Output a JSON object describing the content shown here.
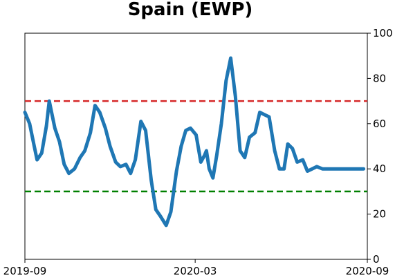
{
  "chart_data": {
    "type": "line",
    "title": "Spain (EWP)",
    "xlabel": "",
    "ylabel": "",
    "x_ticks": [
      "2019-09",
      "2020-03",
      "2020-09"
    ],
    "x_range": [
      "2019-09-01",
      "2020-09-01"
    ],
    "y_ticks": [
      0,
      20,
      40,
      60,
      80,
      100
    ],
    "ylim": [
      0,
      100
    ],
    "y_axis_side": "right",
    "grid": false,
    "colors": {
      "series": "#1f77b4",
      "upper_threshold": "#d62728",
      "lower_threshold": "#008000"
    },
    "thresholds": [
      {
        "value": 70,
        "style": "dashed",
        "color": "#d62728"
      },
      {
        "value": 30,
        "style": "dashed",
        "color": "#008000"
      }
    ],
    "series": [
      {
        "x": [
          "2019-09-01",
          "2019-09-06",
          "2019-09-11",
          "2019-09-14",
          "2019-09-19",
          "2019-09-24",
          "2019-09-27",
          "2019-10-03",
          "2019-10-08",
          "2019-10-13",
          "2019-10-18",
          "2019-10-24",
          "2019-10-30",
          "2019-11-04",
          "2019-11-10",
          "2019-11-15",
          "2019-11-20",
          "2019-11-26",
          "2019-12-01",
          "2019-12-07",
          "2019-12-12",
          "2019-12-18",
          "2019-12-23",
          "2019-12-28",
          "2020-01-03",
          "2020-01-08",
          "2020-01-14",
          "2020-01-19",
          "2020-01-24",
          "2020-01-30",
          "2020-02-04",
          "2020-02-10",
          "2020-02-15",
          "2020-02-20",
          "2020-02-25",
          "2020-03-02",
          "2020-03-07",
          "2020-03-11",
          "2020-03-13",
          "2020-03-16",
          "2020-03-20",
          "2020-03-24",
          "2020-03-29",
          "2020-04-03",
          "2020-04-08",
          "2020-04-13",
          "2020-04-18",
          "2020-04-23",
          "2020-04-28",
          "2020-05-04",
          "2020-05-09",
          "2020-05-14",
          "2020-05-19",
          "2020-05-25",
          "2020-05-30",
          "2020-06-04",
          "2020-06-08",
          "2020-06-13",
          "2020-06-18",
          "2020-06-24",
          "2020-06-29",
          "2020-07-04",
          "2020-07-09",
          "2020-07-15",
          "2020-07-20",
          "2020-07-25",
          "2020-07-31",
          "2020-08-05",
          "2020-08-10",
          "2020-08-15",
          "2020-08-21",
          "2020-08-26",
          "2020-08-28"
        ],
        "values": [
          65,
          60,
          50,
          44,
          47,
          59,
          70,
          58,
          52,
          42,
          38,
          40,
          45,
          48,
          56,
          68,
          65,
          58,
          50,
          43,
          41,
          42,
          38,
          44,
          61,
          57,
          35,
          22,
          19,
          15,
          21,
          39,
          50,
          57,
          58,
          55,
          43,
          46,
          48,
          40,
          36,
          46,
          60,
          79,
          89,
          72,
          48,
          45,
          54,
          56,
          65,
          64,
          63,
          48,
          40,
          40,
          51,
          49,
          43,
          44,
          39,
          40,
          41,
          40,
          40,
          40,
          40,
          40,
          40,
          40,
          40,
          40,
          40
        ]
      }
    ]
  }
}
